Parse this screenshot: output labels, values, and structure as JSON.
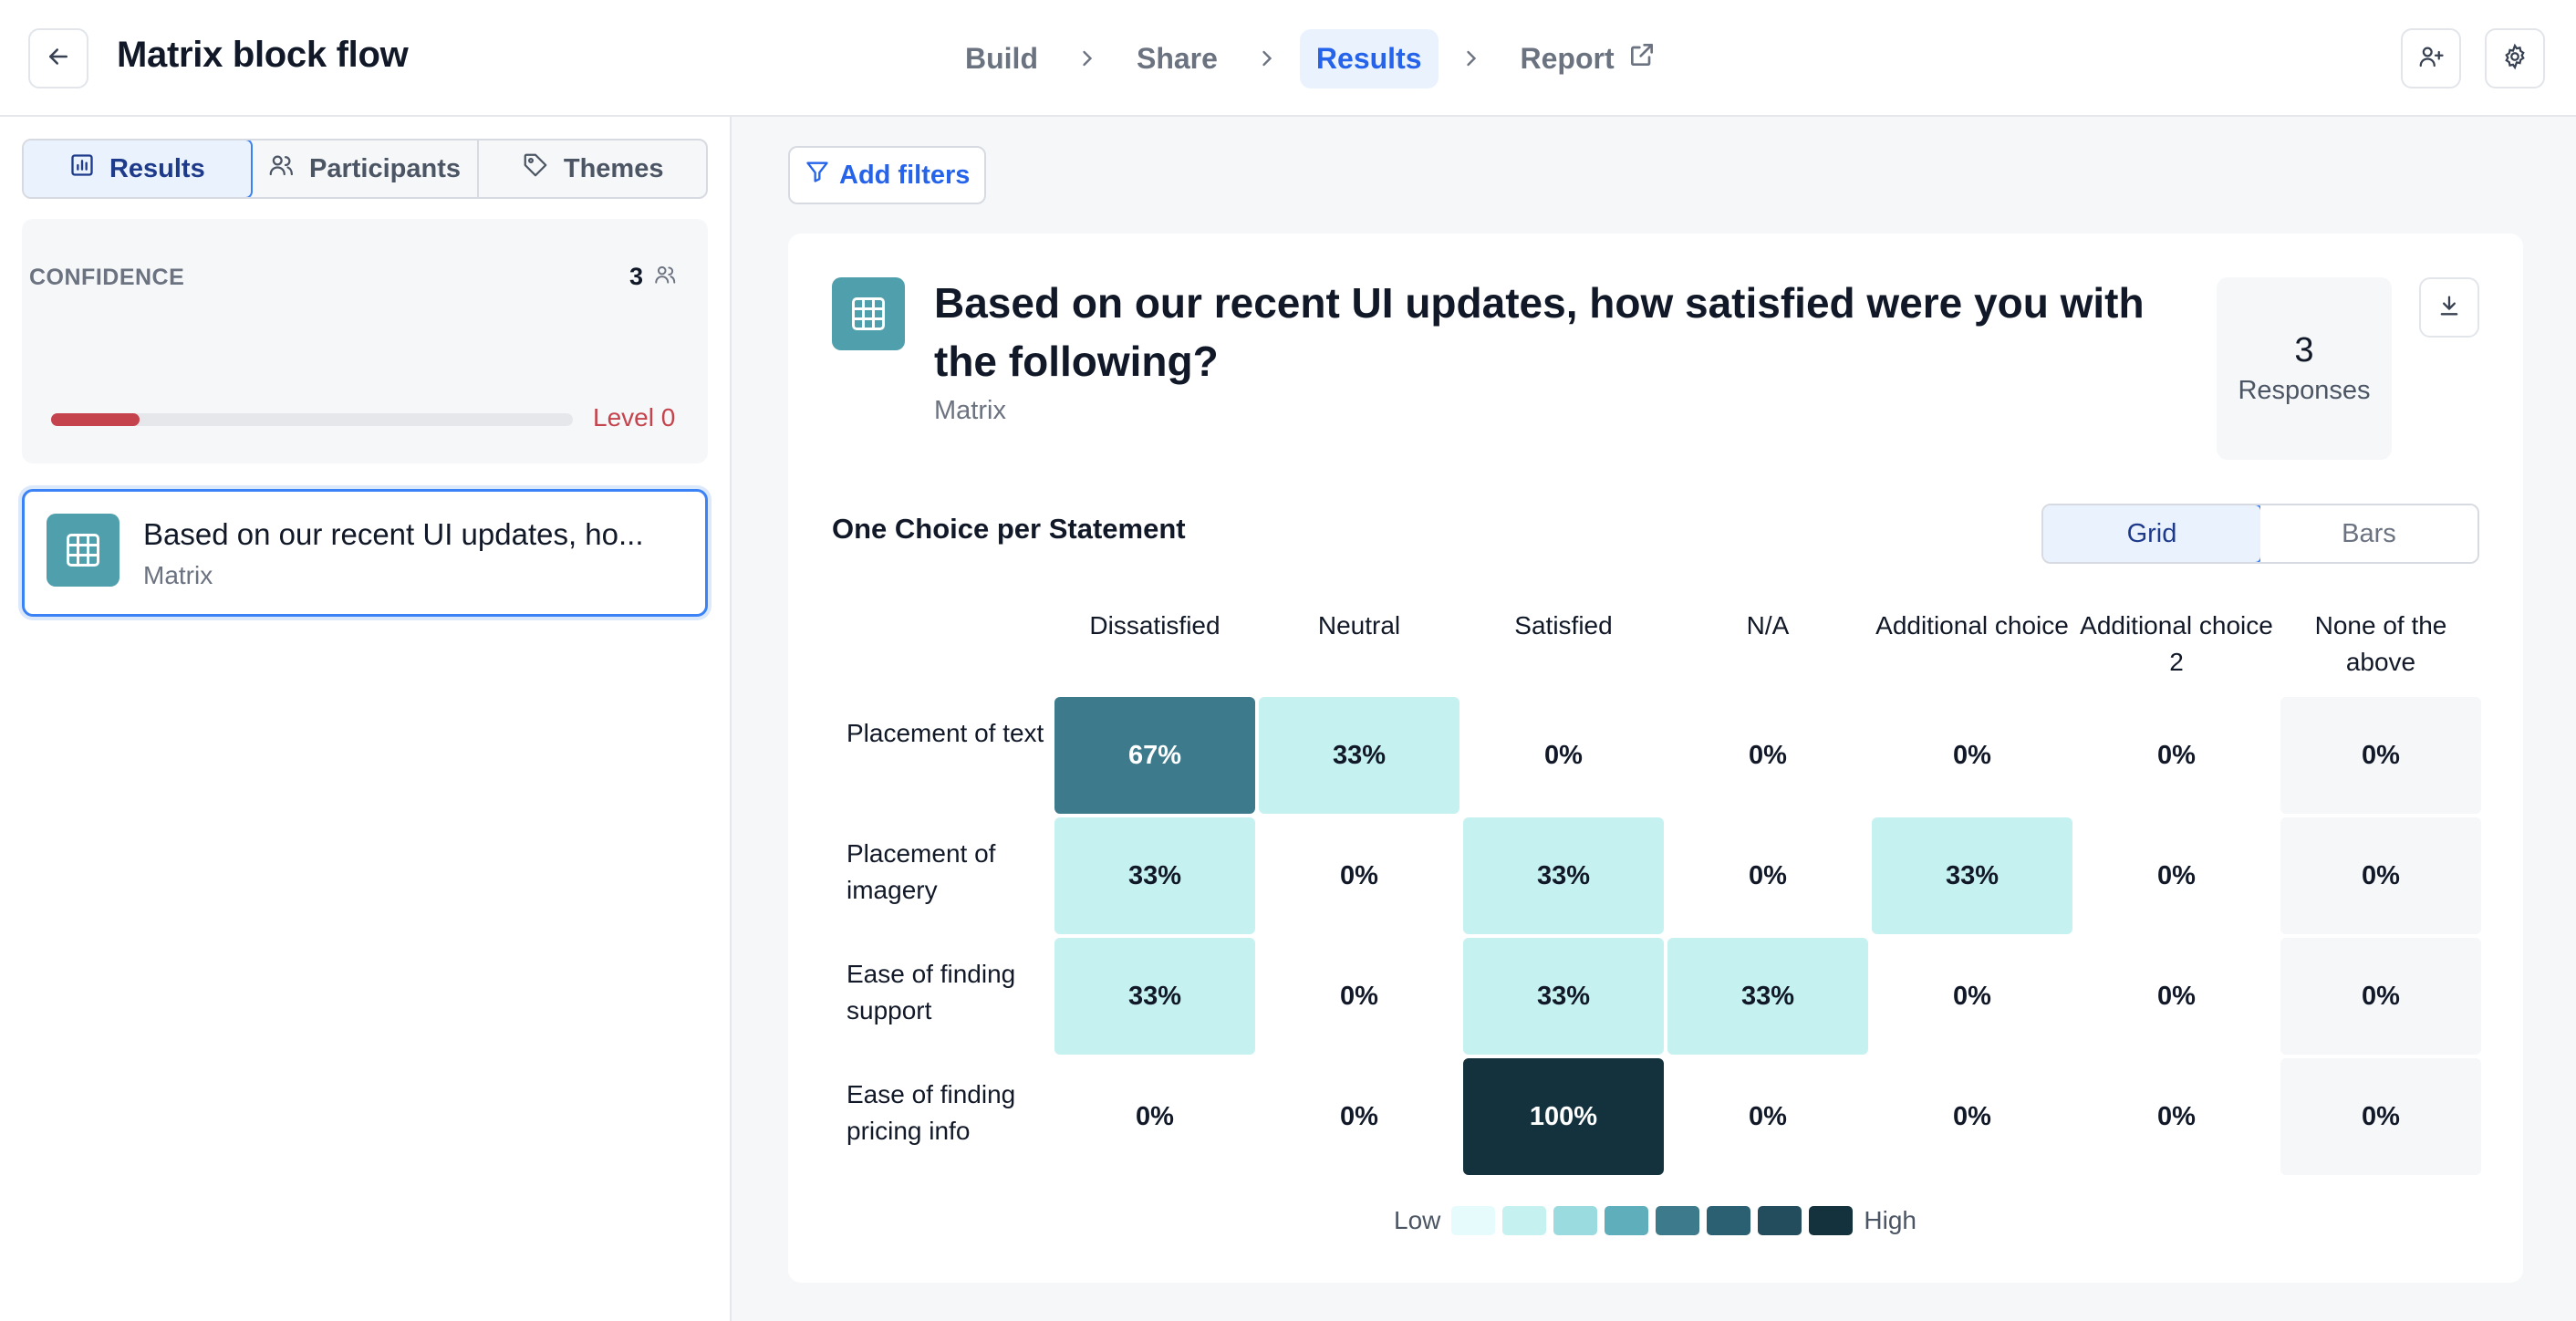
{
  "header": {
    "title": "Matrix block flow",
    "steps": [
      {
        "label": "Build"
      },
      {
        "label": "Share"
      },
      {
        "label": "Results"
      },
      {
        "label": "Report"
      }
    ]
  },
  "sidebar": {
    "tabs": [
      {
        "label": "Results",
        "icon": "bar-chart-icon"
      },
      {
        "label": "Participants",
        "icon": "people-icon"
      },
      {
        "label": "Themes",
        "icon": "tag-icon"
      }
    ],
    "confidence": {
      "label": "CONFIDENCE",
      "count": "3",
      "level": "Level 0",
      "progress": 0.17
    },
    "question": {
      "title": "Based on our recent UI updates, ho...",
      "type": "Matrix"
    }
  },
  "main": {
    "filters_label": "Add filters",
    "question_title": "Based on our recent UI updates, how satisfied were you with the following?",
    "question_type": "Matrix",
    "responses_count": "3",
    "responses_label": "Responses",
    "subtitle": "One Choice per Statement",
    "view_options": [
      "Grid",
      "Bars"
    ],
    "active_view": "Grid",
    "legend": {
      "low": "Low",
      "high": "High"
    }
  },
  "colors": {
    "accent": "#2563eb",
    "icon_teal": "#4f9fad",
    "confidence_red": "#c5434d",
    "scale": [
      "#e6fbfb",
      "#c6f1f1",
      "#9adbe0",
      "#5faebb",
      "#3d7a8c",
      "#2b5f72",
      "#234c5c",
      "#14323e"
    ]
  },
  "chart_data": {
    "type": "heatmap",
    "columns": [
      "Dissatisfied",
      "Neutral",
      "Satisfied",
      "N/A",
      "Additional choice",
      "Additional choice 2",
      "None of the above"
    ],
    "rows": [
      {
        "label": "Placement of text",
        "values": [
          67,
          33,
          0,
          0,
          0,
          0,
          0
        ]
      },
      {
        "label": "Placement of imagery",
        "values": [
          33,
          0,
          33,
          0,
          33,
          0,
          0
        ]
      },
      {
        "label": "Ease of finding support",
        "values": [
          33,
          0,
          33,
          33,
          0,
          0,
          0
        ]
      },
      {
        "label": "Ease of finding pricing info",
        "values": [
          0,
          0,
          100,
          0,
          0,
          0,
          0
        ]
      }
    ],
    "unit": "%"
  }
}
